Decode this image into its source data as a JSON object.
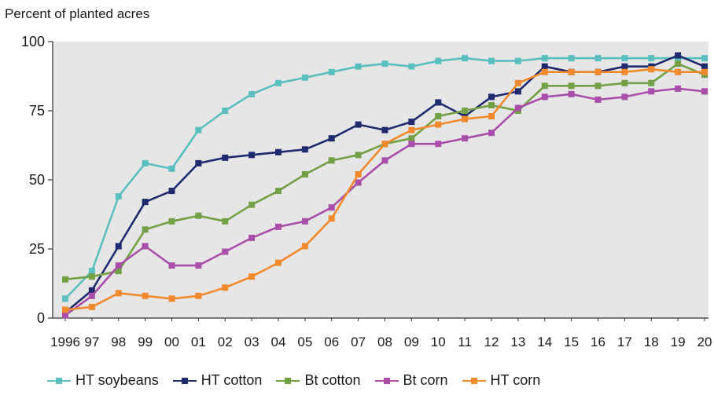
{
  "chart_data": {
    "type": "line",
    "ylabel": "Percent of planted acres",
    "xlabel": "",
    "ylim": [
      0,
      100
    ],
    "yticks": [
      0,
      25,
      50,
      75,
      100
    ],
    "grid": false,
    "legend_position": "bottom",
    "categories": [
      "1996",
      "97",
      "98",
      "99",
      "00",
      "01",
      "02",
      "03",
      "04",
      "05",
      "06",
      "07",
      "08",
      "09",
      "10",
      "11",
      "12",
      "13",
      "14",
      "15",
      "16",
      "17",
      "18",
      "19",
      "20"
    ],
    "series": [
      {
        "name": "HT soybeans",
        "color": "#5bbfbf",
        "values": [
          7,
          17,
          44,
          56,
          54,
          68,
          75,
          81,
          85,
          87,
          89,
          91,
          92,
          91,
          93,
          94,
          93,
          93,
          94,
          94,
          94,
          94,
          94,
          94,
          94
        ]
      },
      {
        "name": "HT cotton",
        "color": "#1f2b6e",
        "values": [
          2,
          10,
          26,
          42,
          46,
          56,
          58,
          59,
          60,
          61,
          65,
          70,
          68,
          71,
          78,
          73,
          80,
          82,
          91,
          89,
          89,
          91,
          91,
          95,
          91
        ]
      },
      {
        "name": "Bt cotton",
        "color": "#73a044",
        "values": [
          14,
          15,
          17,
          32,
          35,
          37,
          35,
          41,
          46,
          52,
          57,
          59,
          63,
          65,
          73,
          75,
          77,
          75,
          84,
          84,
          84,
          85,
          85,
          92,
          88
        ]
      },
      {
        "name": "Bt corn",
        "color": "#a94fa9",
        "values": [
          1,
          8,
          19,
          26,
          19,
          19,
          24,
          29,
          33,
          35,
          40,
          49,
          57,
          63,
          63,
          65,
          67,
          76,
          80,
          81,
          79,
          80,
          82,
          83,
          82
        ]
      },
      {
        "name": "HT corn",
        "color": "#f08a2c",
        "values": [
          3,
          4,
          9,
          8,
          7,
          8,
          11,
          15,
          20,
          26,
          36,
          52,
          63,
          68,
          70,
          72,
          73,
          85,
          89,
          89,
          89,
          89,
          90,
          89,
          89
        ]
      }
    ]
  }
}
